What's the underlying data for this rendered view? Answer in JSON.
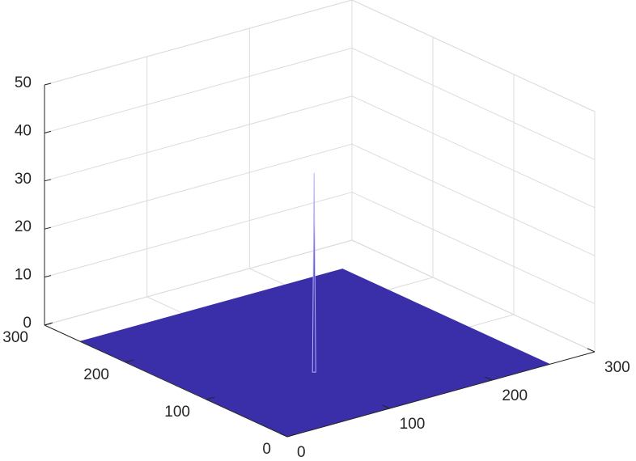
{
  "chart_data": {
    "type": "surface",
    "xlim": [
      0,
      300
    ],
    "ylim": [
      0,
      300
    ],
    "zlim": [
      0,
      50
    ],
    "xticks": [
      0,
      100,
      200,
      300
    ],
    "yticks": [
      0,
      100,
      200,
      300
    ],
    "zticks": [
      0,
      10,
      20,
      30,
      40,
      50
    ],
    "grid": true,
    "color": "#3a2fa8",
    "surface": {
      "x": [
        1,
        256
      ],
      "y": [
        1,
        256
      ],
      "z": 0
    },
    "peak": {
      "x": 102,
      "y": 96,
      "z": 41.5,
      "color": "#b8b0ff"
    }
  }
}
